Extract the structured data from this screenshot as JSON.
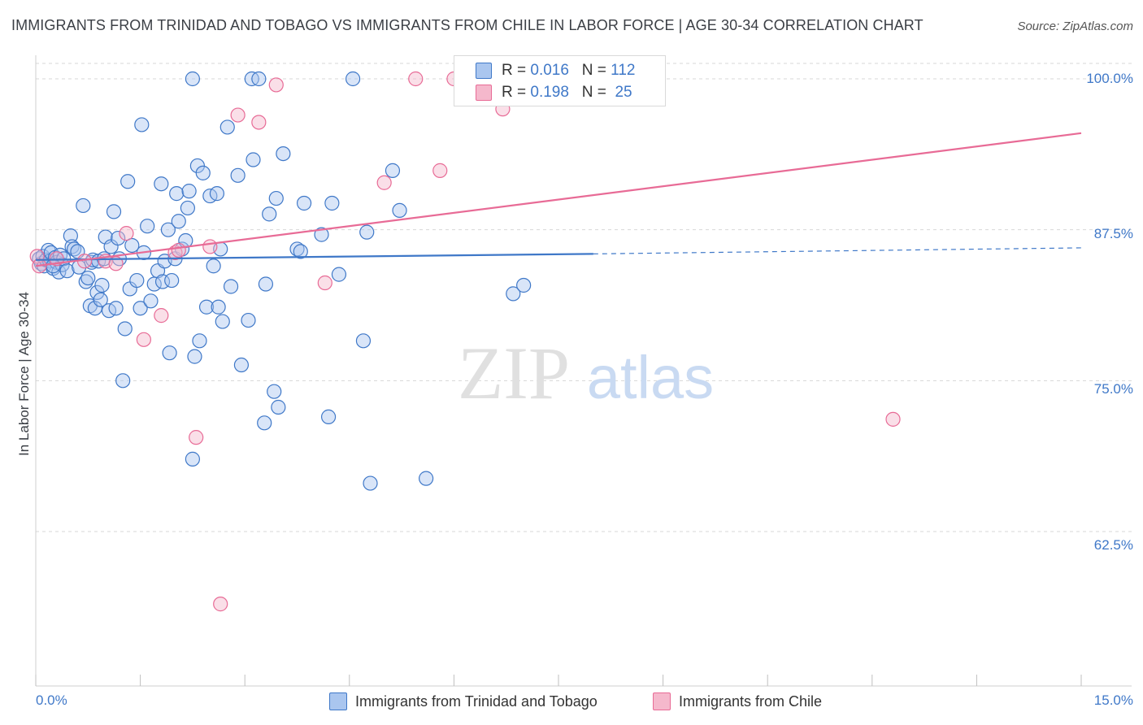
{
  "title": "IMMIGRANTS FROM TRINIDAD AND TOBAGO VS IMMIGRANTS FROM CHILE IN LABOR FORCE | AGE 30-34 CORRELATION CHART",
  "source": "Source: ZipAtlas.com",
  "watermark": {
    "zip": "ZIP",
    "atlas": "atlas"
  },
  "colors": {
    "blue": "#3f78c8",
    "blue_fill": "#aac6ef",
    "pink": "#e86b96",
    "pink_fill": "#f5b8cc",
    "grid": "#d7d7d7"
  },
  "legend": {
    "rows": [
      {
        "r_label": "R =",
        "r_value": "0.016",
        "n_label": "N =",
        "n_value": "112"
      },
      {
        "r_label": "R =",
        "r_value": "0.198",
        "n_label": "N =",
        "n_value": "25"
      }
    ]
  },
  "chart_data": {
    "type": "scatter",
    "title": "IMMIGRANTS FROM TRINIDAD AND TOBAGO VS IMMIGRANTS FROM CHILE IN LABOR FORCE | AGE 30-34 CORRELATION CHART",
    "xlabel": "",
    "ylabel": "In Labor Force | Age 30-34",
    "xlim": [
      0,
      15
    ],
    "ylim": [
      50,
      101.5
    ],
    "x_tick_labels": [
      "0.0%",
      "15.0%"
    ],
    "y_ticks": [
      62.5,
      75.0,
      87.5,
      100.0
    ],
    "y_tick_labels": [
      "62.5%",
      "75.0%",
      "87.5%",
      "100.0%"
    ],
    "grid": true,
    "legend_position": "top-center",
    "series": [
      {
        "name": "Immigrants from Trinidad and Tobago",
        "color": "#3f78c8",
        "r": 0.016,
        "n": 112,
        "trend": {
          "x0": 0,
          "y0": 85.0,
          "x1": 8.0,
          "y1": 85.5,
          "dashed_to_x": 15.0,
          "dashed_y": 86.0
        },
        "points": [
          [
            0.05,
            85.1
          ],
          [
            0.08,
            84.7
          ],
          [
            0.1,
            85.3
          ],
          [
            0.12,
            84.5
          ],
          [
            0.15,
            85.0
          ],
          [
            0.18,
            85.8
          ],
          [
            0.2,
            84.9
          ],
          [
            0.22,
            85.6
          ],
          [
            0.25,
            84.3
          ],
          [
            0.28,
            85.2
          ],
          [
            0.3,
            84.8
          ],
          [
            0.33,
            84.0
          ],
          [
            0.35,
            85.4
          ],
          [
            0.38,
            84.6
          ],
          [
            0.4,
            85.1
          ],
          [
            0.45,
            84.1
          ],
          [
            0.5,
            87.0
          ],
          [
            0.52,
            86.1
          ],
          [
            0.55,
            85.9
          ],
          [
            0.6,
            85.7
          ],
          [
            0.62,
            84.4
          ],
          [
            0.68,
            89.5
          ],
          [
            0.72,
            83.2
          ],
          [
            0.75,
            83.5
          ],
          [
            0.78,
            81.2
          ],
          [
            0.8,
            84.8
          ],
          [
            0.82,
            85.0
          ],
          [
            0.85,
            81.0
          ],
          [
            0.88,
            82.3
          ],
          [
            0.9,
            84.9
          ],
          [
            0.93,
            81.7
          ],
          [
            0.95,
            82.9
          ],
          [
            0.98,
            85.1
          ],
          [
            1.0,
            86.9
          ],
          [
            1.05,
            80.8
          ],
          [
            1.08,
            86.1
          ],
          [
            1.12,
            89.0
          ],
          [
            1.15,
            81.0
          ],
          [
            1.18,
            86.8
          ],
          [
            1.2,
            85.1
          ],
          [
            1.25,
            75.0
          ],
          [
            1.28,
            79.3
          ],
          [
            1.32,
            91.5
          ],
          [
            1.35,
            82.6
          ],
          [
            1.38,
            86.2
          ],
          [
            1.45,
            83.3
          ],
          [
            1.5,
            81.0
          ],
          [
            1.52,
            96.2
          ],
          [
            1.55,
            85.6
          ],
          [
            1.6,
            87.8
          ],
          [
            1.65,
            81.6
          ],
          [
            1.7,
            83.0
          ],
          [
            1.75,
            84.1
          ],
          [
            1.8,
            91.3
          ],
          [
            1.82,
            83.2
          ],
          [
            1.85,
            84.9
          ],
          [
            1.9,
            87.5
          ],
          [
            1.92,
            77.3
          ],
          [
            1.95,
            83.3
          ],
          [
            2.0,
            85.1
          ],
          [
            2.02,
            90.5
          ],
          [
            2.05,
            88.2
          ],
          [
            2.1,
            85.9
          ],
          [
            2.15,
            86.6
          ],
          [
            2.18,
            89.3
          ],
          [
            2.2,
            90.7
          ],
          [
            2.25,
            100.0
          ],
          [
            2.28,
            77.0
          ],
          [
            2.32,
            92.8
          ],
          [
            2.35,
            78.3
          ],
          [
            2.4,
            92.2
          ],
          [
            2.45,
            81.1
          ],
          [
            2.5,
            90.3
          ],
          [
            2.55,
            84.5
          ],
          [
            2.6,
            90.5
          ],
          [
            2.62,
            81.1
          ],
          [
            2.65,
            85.9
          ],
          [
            2.68,
            79.9
          ],
          [
            2.75,
            96.0
          ],
          [
            2.8,
            82.8
          ],
          [
            2.9,
            92.0
          ],
          [
            2.95,
            76.3
          ],
          [
            3.05,
            80.0
          ],
          [
            3.1,
            100.0
          ],
          [
            3.12,
            93.3
          ],
          [
            3.2,
            100.0
          ],
          [
            3.28,
            71.5
          ],
          [
            3.3,
            83.0
          ],
          [
            3.35,
            88.8
          ],
          [
            3.42,
            74.1
          ],
          [
            3.45,
            90.1
          ],
          [
            3.48,
            72.8
          ],
          [
            3.55,
            93.8
          ],
          [
            3.75,
            85.9
          ],
          [
            3.8,
            85.7
          ],
          [
            3.85,
            89.7
          ],
          [
            4.1,
            87.1
          ],
          [
            4.2,
            72.0
          ],
          [
            4.25,
            89.7
          ],
          [
            4.35,
            83.8
          ],
          [
            4.55,
            100.0
          ],
          [
            4.7,
            78.3
          ],
          [
            4.75,
            87.3
          ],
          [
            4.8,
            66.5
          ],
          [
            5.12,
            92.4
          ],
          [
            5.22,
            89.1
          ],
          [
            5.6,
            66.9
          ],
          [
            6.15,
            100.0
          ],
          [
            6.85,
            82.2
          ],
          [
            7.0,
            82.9
          ],
          [
            2.25,
            68.5
          ],
          [
            0.25,
            84.5
          ]
        ]
      },
      {
        "name": "Immigrants from Chile",
        "color": "#e86b96",
        "r": 0.198,
        "n": 25,
        "trend": {
          "x0": 0,
          "y0": 84.5,
          "x1": 15.0,
          "y1": 95.5
        },
        "points": [
          [
            0.02,
            85.3
          ],
          [
            0.05,
            84.5
          ],
          [
            0.3,
            85.1
          ],
          [
            0.7,
            84.9
          ],
          [
            1.0,
            84.9
          ],
          [
            1.15,
            84.7
          ],
          [
            1.3,
            87.2
          ],
          [
            1.55,
            78.4
          ],
          [
            1.8,
            80.4
          ],
          [
            2.0,
            85.6
          ],
          [
            2.05,
            85.8
          ],
          [
            2.3,
            70.3
          ],
          [
            2.5,
            86.1
          ],
          [
            2.65,
            56.5
          ],
          [
            2.9,
            97.0
          ],
          [
            3.2,
            96.4
          ],
          [
            3.45,
            99.5
          ],
          [
            4.15,
            83.1
          ],
          [
            5.0,
            91.4
          ],
          [
            5.45,
            100.0
          ],
          [
            5.8,
            92.4
          ],
          [
            6.0,
            100.0
          ],
          [
            6.7,
            97.5
          ],
          [
            7.3,
            100.0
          ],
          [
            12.3,
            71.8
          ]
        ]
      }
    ]
  }
}
